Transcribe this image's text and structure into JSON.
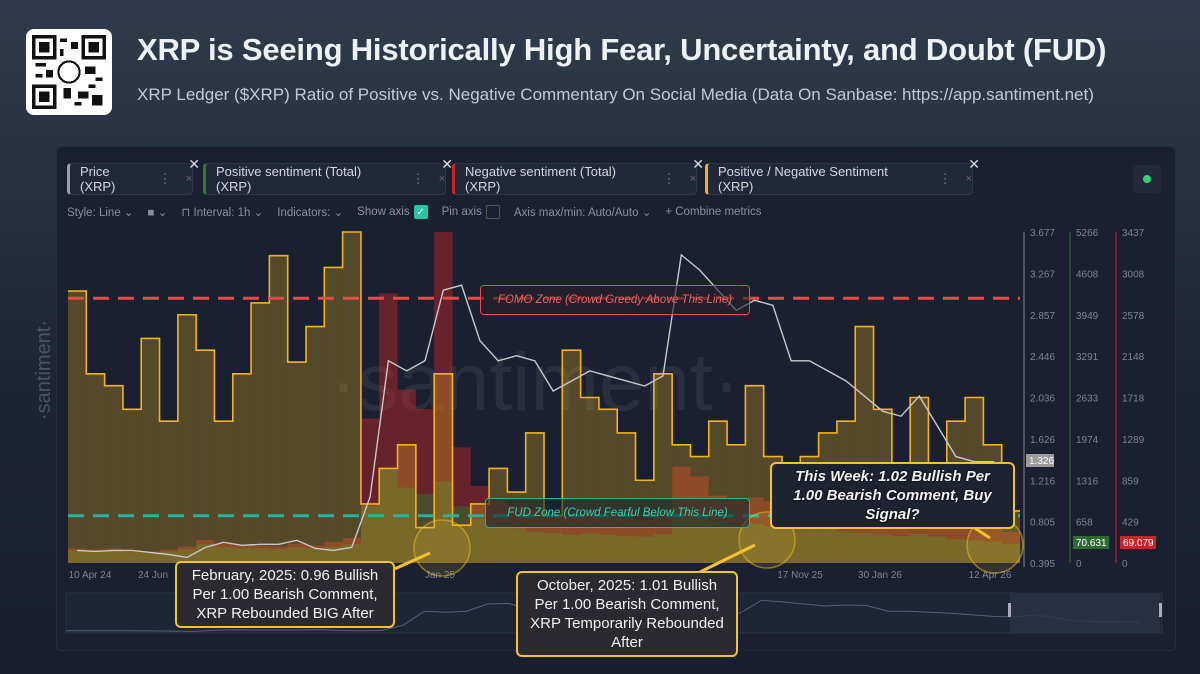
{
  "header": {
    "title": "XRP is Seeing Historically High Fear, Uncertainty, and Doubt (FUD)",
    "subtitle": "XRP Ledger ($XRP) Ratio of Positive vs. Negative Commentary On Social Media (Data On Sanbase: https://app.santiment.net)",
    "logo": "santiment-qr-code"
  },
  "metrics": [
    {
      "label": "Price (XRP)",
      "color": "#9aa0a6"
    },
    {
      "label": "Positive sentiment (Total) (XRP)",
      "color": "#2e7d32"
    },
    {
      "label": "Negative sentiment (Total) (XRP)",
      "color": "#c62828"
    },
    {
      "label": "Positive / Negative Sentiment (XRP)",
      "color": "#f2b41c"
    }
  ],
  "toolbar": {
    "style": "Style: Line",
    "interval": "Interval: 1h",
    "indicators": "Indicators:",
    "show_axis": "Show axis",
    "show_axis_checked": true,
    "pin_axis": "Pin axis",
    "pin_axis_checked": false,
    "axis_maxmin": "Axis max/min: Auto/Auto",
    "combine": "+ Combine metrics"
  },
  "watermark": "·santiment·",
  "zones": {
    "fomo": "FOMO Zone (Crowd Greedy Above This Line)",
    "fud": "FUD Zone (Crowd Fearful Below This Line)",
    "fomo_color": "#e84a4a",
    "fud_color": "#26b59a"
  },
  "callouts": {
    "feb": "February, 2025: 0.96 Bullish Per 1.00 Bearish Comment, XRP Rebounded BIG After",
    "oct": "October, 2025: 1.01 Bullish Per 1.00 Bearish Comment, XRP Temporarily Rebounded After",
    "week": "This Week: 1.02 Bullish Per 1.00 Bearish Comment, Buy Signal?"
  },
  "chart_data": {
    "type": "line",
    "x_tick_labels": [
      "10 Apr 24",
      "24 Jun",
      "Jan 25",
      "17 Nov 25",
      "30 Jan 26",
      "12 Apr 26"
    ],
    "axes": {
      "price": {
        "ticks": [
          "3.677",
          "3.267",
          "2.857",
          "2.446",
          "2.036",
          "1.626",
          "1.216",
          "0.805",
          "0.395"
        ],
        "range": [
          0.395,
          3.677
        ],
        "last": "1.326"
      },
      "positive": {
        "ticks": [
          "5266",
          "4608",
          "3949",
          "3291",
          "2633",
          "1974",
          "1316",
          "658",
          "0"
        ],
        "range": [
          0,
          5266
        ],
        "last": "70.631"
      },
      "negative": {
        "ticks": [
          "3437",
          "3008",
          "2578",
          "2148",
          "1718",
          "1289",
          "859",
          "429",
          "0"
        ],
        "range": [
          0,
          3437
        ],
        "last": "69.079"
      }
    },
    "ratio_range": [
      0.8,
      2.2
    ],
    "fomo_level": 1.92,
    "fud_level": 1.0,
    "x": [
      "2024-04-10",
      "2024-04-24",
      "2024-05-08",
      "2024-05-22",
      "2024-06-05",
      "2024-06-19",
      "2024-07-03",
      "2024-07-17",
      "2024-07-31",
      "2024-08-14",
      "2024-08-28",
      "2024-09-11",
      "2024-09-25",
      "2024-10-09",
      "2024-10-23",
      "2024-11-06",
      "2024-11-20",
      "2024-12-04",
      "2024-12-18",
      "2025-01-01",
      "2025-01-15",
      "2025-01-29",
      "2025-02-12",
      "2025-02-26",
      "2025-03-12",
      "2025-03-26",
      "2025-04-09",
      "2025-04-23",
      "2025-05-07",
      "2025-05-21",
      "2025-06-04",
      "2025-06-18",
      "2025-07-02",
      "2025-07-16",
      "2025-07-30",
      "2025-08-13",
      "2025-08-27",
      "2025-09-10",
      "2025-09-24",
      "2025-10-08",
      "2025-10-22",
      "2025-11-05",
      "2025-11-19",
      "2025-12-03",
      "2025-12-17",
      "2025-12-31",
      "2026-01-14",
      "2026-01-28",
      "2026-02-11",
      "2026-02-25",
      "2026-03-11",
      "2026-03-25"
    ],
    "series": [
      {
        "name": "Price (XRP)",
        "values": [
          0.52,
          0.51,
          0.52,
          0.52,
          0.5,
          0.48,
          0.45,
          0.55,
          0.6,
          0.57,
          0.58,
          0.58,
          0.62,
          0.54,
          0.52,
          0.55,
          1.05,
          2.4,
          2.3,
          2.4,
          3.1,
          3.15,
          2.6,
          2.4,
          2.45,
          2.4,
          2.1,
          2.2,
          2.3,
          2.25,
          2.2,
          2.15,
          2.25,
          3.45,
          3.3,
          3.1,
          2.9,
          3.0,
          2.95,
          2.4,
          2.4,
          2.3,
          2.2,
          2.05,
          1.9,
          1.85,
          2.05,
          1.75,
          1.45,
          1.4,
          1.4,
          1.33
        ]
      },
      {
        "name": "Positive sentiment (Total) (XRP)",
        "values": [
          200,
          180,
          190,
          170,
          160,
          180,
          220,
          300,
          260,
          240,
          230,
          220,
          250,
          230,
          260,
          300,
          900,
          1500,
          1200,
          1100,
          1300,
          900,
          700,
          600,
          550,
          500,
          480,
          450,
          470,
          450,
          430,
          420,
          460,
          900,
          800,
          650,
          600,
          620,
          580,
          700,
          650,
          560,
          500,
          480,
          450,
          430,
          460,
          420,
          380,
          360,
          340,
          300
        ]
      },
      {
        "name": "Negative sentiment (Total) (XRP)",
        "values": [
          150,
          140,
          150,
          130,
          120,
          140,
          170,
          240,
          200,
          190,
          180,
          170,
          200,
          180,
          220,
          260,
          1500,
          2800,
          1800,
          1600,
          3437,
          1200,
          800,
          650,
          600,
          550,
          520,
          480,
          500,
          480,
          460,
          450,
          500,
          1000,
          900,
          700,
          650,
          680,
          640,
          900,
          750,
          620,
          560,
          520,
          500,
          470,
          500,
          460,
          420,
          400,
          380,
          320
        ]
      },
      {
        "name": "Positive / Negative Sentiment (XRP)",
        "values": [
          1.95,
          1.6,
          1.55,
          1.45,
          1.75,
          1.4,
          1.85,
          1.7,
          1.4,
          1.6,
          1.9,
          2.1,
          1.65,
          1.8,
          2.05,
          2.2,
          1.05,
          1.2,
          1.3,
          0.95,
          1.6,
          0.96,
          1.05,
          1.2,
          1.1,
          1.35,
          1.0,
          1.7,
          1.5,
          1.45,
          1.35,
          1.15,
          1.6,
          1.3,
          1.25,
          1.4,
          1.3,
          1.55,
          1.25,
          1.01,
          1.25,
          1.35,
          1.4,
          1.8,
          1.45,
          1.2,
          1.5,
          1.2,
          1.4,
          1.5,
          1.3,
          1.02
        ]
      }
    ]
  }
}
